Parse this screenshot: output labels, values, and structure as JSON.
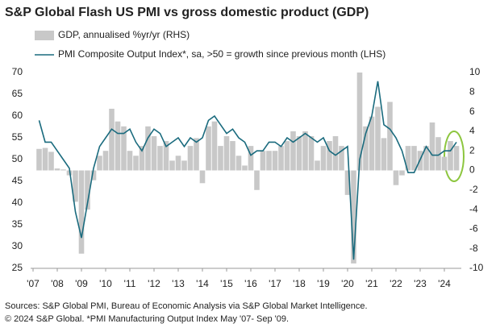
{
  "chart_data": {
    "type": "combo",
    "title": "S&P Global Flash US PMI vs gross domestic product (GDP)",
    "footnotes": [
      "Sources: S&P Global PMI, Bureau of Economic Analysis via S&P Global Market Intelligence.",
      "© 2024 S&P Global.  *PMI Manufacturing Output Index May '07- Sep '09."
    ],
    "xlim": [
      2006.9,
      2024.7
    ],
    "xticks": [
      {
        "value": 2007,
        "label": "'07"
      },
      {
        "value": 2008,
        "label": "'08"
      },
      {
        "value": 2009,
        "label": "'09"
      },
      {
        "value": 2010,
        "label": "'10"
      },
      {
        "value": 2011,
        "label": "'11"
      },
      {
        "value": 2012,
        "label": "'12"
      },
      {
        "value": 2013,
        "label": "'13"
      },
      {
        "value": 2014,
        "label": "'14"
      },
      {
        "value": 2015,
        "label": "'15"
      },
      {
        "value": 2016,
        "label": "'16"
      },
      {
        "value": 2017,
        "label": "'17"
      },
      {
        "value": 2018,
        "label": "'18"
      },
      {
        "value": 2019,
        "label": "'19"
      },
      {
        "value": 2020,
        "label": "'20"
      },
      {
        "value": 2021,
        "label": "'21"
      },
      {
        "value": 2022,
        "label": "'22"
      },
      {
        "value": 2023,
        "label": "'23"
      },
      {
        "value": 2024,
        "label": "'24"
      }
    ],
    "ylim": [
      25,
      70
    ],
    "yticks": [
      25,
      30,
      35,
      40,
      45,
      50,
      55,
      60,
      65,
      70
    ],
    "y2lim": [
      -10,
      10
    ],
    "y2ticks": [
      -10,
      -8,
      -6,
      -4,
      -2,
      0,
      2,
      4,
      6,
      8,
      10
    ],
    "series": [
      {
        "name": "GDP, annualised %yr/yr (RHS)",
        "type": "bar",
        "axis": "y2",
        "color": "#c8c8c8",
        "x": [
          2007.25,
          2007.5,
          2007.75,
          2008,
          2008.25,
          2008.5,
          2008.75,
          2009,
          2009.25,
          2009.5,
          2009.75,
          2010,
          2010.25,
          2010.5,
          2010.75,
          2011,
          2011.25,
          2011.5,
          2011.75,
          2012,
          2012.25,
          2012.5,
          2012.75,
          2013,
          2013.25,
          2013.5,
          2013.75,
          2014,
          2014.25,
          2014.5,
          2014.75,
          2015,
          2015.25,
          2015.5,
          2015.75,
          2016,
          2016.25,
          2016.5,
          2016.75,
          2017,
          2017.25,
          2017.5,
          2017.75,
          2018,
          2018.25,
          2018.5,
          2018.75,
          2019,
          2019.25,
          2019.5,
          2019.75,
          2020,
          2020.25,
          2020.5,
          2020.75,
          2021,
          2021.25,
          2021.5,
          2021.75,
          2022,
          2022.25,
          2022.5,
          2022.75,
          2023,
          2023.25,
          2023.5,
          2023.75,
          2024,
          2024.25,
          2024.5
        ],
        "values": [
          2.2,
          2.3,
          1.9,
          0.2,
          0.1,
          -0.5,
          -3.2,
          -8.5,
          -4,
          -1,
          1.5,
          2,
          6.3,
          5,
          4.5,
          2,
          1.5,
          2.5,
          4.5,
          3.5,
          2.5,
          3,
          1,
          1.5,
          1,
          2.5,
          3.3,
          -1.3,
          4.5,
          5,
          2.5,
          3.5,
          3,
          1.5,
          0.5,
          2.5,
          -2,
          2,
          2,
          2,
          2.5,
          3,
          4,
          3.5,
          4,
          3.5,
          1,
          2.5,
          3,
          3.5,
          2.5,
          -2.5,
          -9.5,
          10,
          4.5,
          5.5,
          6.5,
          3.3,
          7,
          -1.5,
          -0.5,
          2.5,
          2.5,
          2,
          2.5,
          4.9,
          3.4,
          1.4,
          3,
          2.5
        ]
      },
      {
        "name": "PMI Composite Output Index*, sa, >50 = growth since previous month (LHS)",
        "type": "line",
        "axis": "y",
        "color": "#1a6b7e",
        "x": [
          2007.25,
          2007.5,
          2007.75,
          2008,
          2008.25,
          2008.5,
          2008.75,
          2009,
          2009.25,
          2009.5,
          2009.75,
          2010,
          2010.25,
          2010.5,
          2010.75,
          2011,
          2011.25,
          2011.5,
          2011.75,
          2012,
          2012.25,
          2012.5,
          2012.75,
          2013,
          2013.25,
          2013.5,
          2013.75,
          2014,
          2014.25,
          2014.5,
          2014.75,
          2015,
          2015.25,
          2015.5,
          2015.75,
          2016,
          2016.25,
          2016.5,
          2016.75,
          2017,
          2017.25,
          2017.5,
          2017.75,
          2018,
          2018.25,
          2018.5,
          2018.75,
          2019,
          2019.25,
          2019.5,
          2019.75,
          2020,
          2020.25,
          2020.5,
          2020.75,
          2021,
          2021.25,
          2021.5,
          2021.75,
          2022,
          2022.25,
          2022.5,
          2022.75,
          2023,
          2023.25,
          2023.5,
          2023.75,
          2024,
          2024.25,
          2024.5
        ],
        "values": [
          59,
          54,
          54,
          52,
          50,
          48,
          38,
          32,
          40,
          48,
          53,
          55,
          57,
          56,
          56,
          57,
          54,
          52,
          55,
          57,
          56,
          53,
          54,
          55,
          53,
          55,
          54,
          55,
          59,
          60,
          58,
          56,
          57,
          55,
          54,
          51,
          52,
          52,
          54,
          54,
          53,
          55,
          54,
          55,
          56,
          55,
          54,
          55,
          52,
          51,
          52,
          53,
          27,
          50,
          56,
          60,
          68,
          58,
          57,
          55,
          52,
          47,
          47,
          50,
          53,
          51,
          51,
          52,
          52,
          54
        ]
      }
    ]
  }
}
